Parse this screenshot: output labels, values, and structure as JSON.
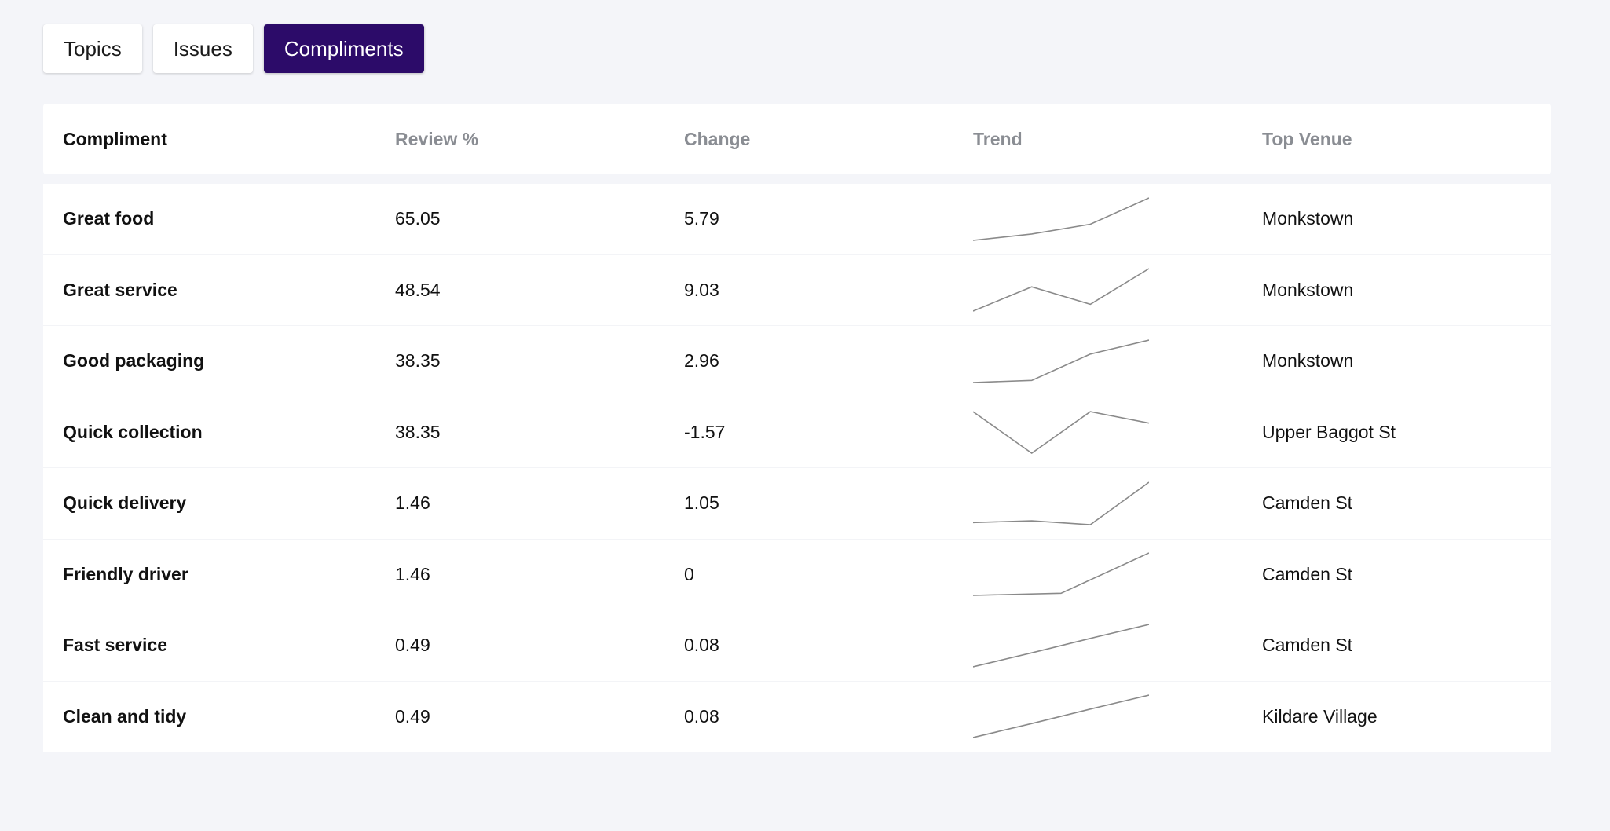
{
  "tabs": [
    {
      "label": "Topics",
      "active": false
    },
    {
      "label": "Issues",
      "active": false
    },
    {
      "label": "Compliments",
      "active": true
    }
  ],
  "colors": {
    "active_tab": "#2c0b69",
    "page_bg": "#f4f5f9",
    "sparkline": "#8a8a8a"
  },
  "table": {
    "headers": [
      "Compliment",
      "Review %",
      "Change",
      "Trend",
      "Top Venue"
    ],
    "rows": [
      {
        "name": "Great food",
        "review_pct": "65.05",
        "change": "5.79",
        "venue": "Monkstown",
        "trend": [
          0.0,
          0.15,
          0.38,
          1.0
        ]
      },
      {
        "name": "Great service",
        "review_pct": "48.54",
        "change": "9.03",
        "venue": "Monkstown",
        "trend": [
          0.0,
          0.57,
          0.16,
          1.0
        ]
      },
      {
        "name": "Good packaging",
        "review_pct": "38.35",
        "change": "2.96",
        "venue": "Monkstown",
        "trend": [
          0.0,
          0.05,
          0.67,
          1.0
        ]
      },
      {
        "name": "Quick collection",
        "review_pct": "38.35",
        "change": "-1.57",
        "venue": "Upper Baggot St",
        "trend": [
          0.98,
          0.0,
          0.98,
          0.71
        ]
      },
      {
        "name": "Quick delivery",
        "review_pct": "1.46",
        "change": "1.05",
        "venue": "Camden St",
        "trend": [
          0.05,
          0.09,
          0.0,
          1.0
        ]
      },
      {
        "name": "Friendly driver",
        "review_pct": "1.46",
        "change": "0",
        "venue": "Camden St",
        "trend": [
          0.0,
          0.05,
          1.0
        ],
        "trend_x": [
          0,
          0.5,
          1.0
        ]
      },
      {
        "name": "Fast service",
        "review_pct": "0.49",
        "change": "0.08",
        "venue": "Camden St",
        "trend": [
          0.0,
          0.33,
          0.67,
          1.0
        ]
      },
      {
        "name": "Clean and tidy",
        "review_pct": "0.49",
        "change": "0.08",
        "venue": "Kildare Village",
        "trend": [
          0.0,
          0.33,
          0.67,
          1.0
        ]
      }
    ]
  }
}
